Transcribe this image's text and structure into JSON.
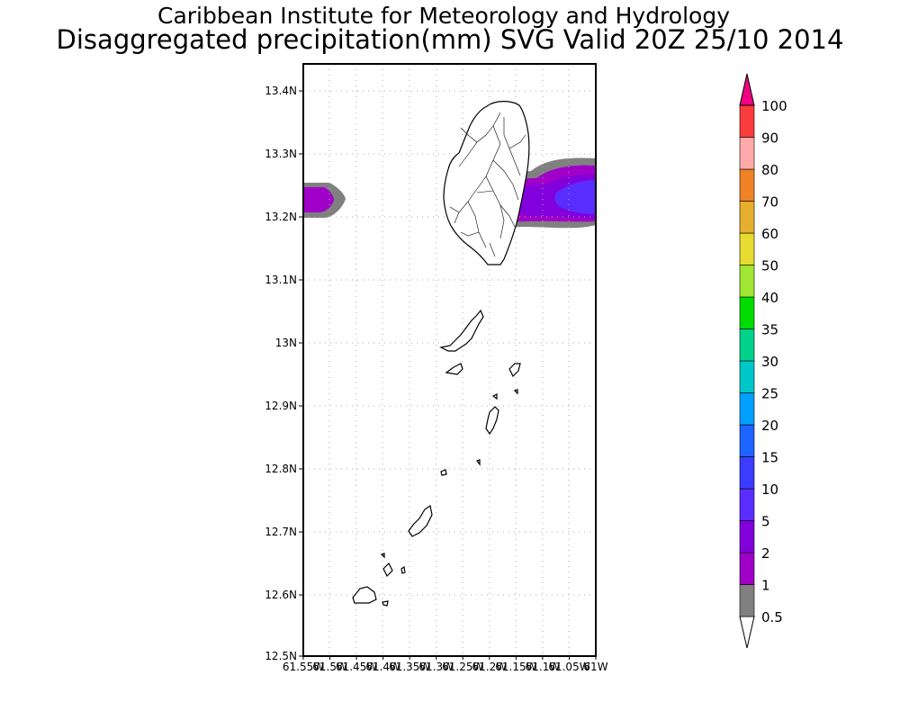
{
  "header": {
    "institute": "Caribbean Institute for Meteorology and Hydrology",
    "product": "Disaggregated precipitation(mm) SVG Valid 20Z 25/10 2014"
  },
  "map": {
    "lat_ticks": [
      "13.4N",
      "13.3N",
      "13.2N",
      "13.1N",
      "13N",
      "12.9N",
      "12.8N",
      "12.7N",
      "12.6N",
      "12.5N"
    ],
    "lon_ticks": [
      "61.55W",
      "61.5W",
      "61.45W",
      "61.4W",
      "61.35W",
      "61.3W",
      "61.25W",
      "61.2W",
      "61.15W",
      "61.1W",
      "61.05W",
      "61W"
    ],
    "lat_range": [
      12.5,
      13.44
    ],
    "lon_range": [
      -61.55,
      -61.0
    ],
    "islands": [
      "Saint Vincent",
      "Bequia",
      "Mustique",
      "Canouan",
      "Mayreau",
      "Union Island"
    ]
  },
  "colorbar": {
    "levels": [
      "0.5",
      "1",
      "2",
      "5",
      "10",
      "15",
      "20",
      "25",
      "30",
      "35",
      "40",
      "50",
      "60",
      "70",
      "80",
      "90",
      "100"
    ],
    "colors": [
      "#808080",
      "#a000c8",
      "#8200dc",
      "#5a2dff",
      "#3c3cff",
      "#1e64ff",
      "#00a0ff",
      "#00c8c8",
      "#00d28c",
      "#00dc00",
      "#a0e632",
      "#e6dc32",
      "#e6af2d",
      "#f08228",
      "#ffaaaa",
      "#fa3c3c",
      "#ff0000",
      "#f00082"
    ]
  },
  "colors": {
    "frame": "#000000",
    "grid": "#aaaaaa",
    "coast": "#000000"
  }
}
